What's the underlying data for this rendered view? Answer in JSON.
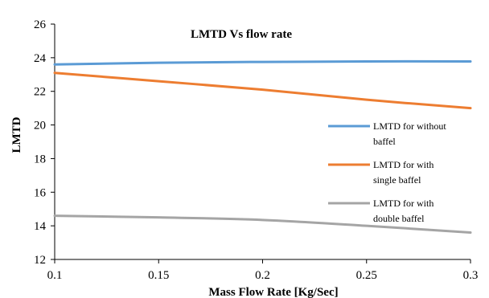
{
  "chart_data": {
    "type": "line",
    "title": "LMTD Vs flow rate",
    "xlabel": "Mass Flow Rate [Kg/Sec]",
    "ylabel": "LMTD",
    "xlim": [
      0.1,
      0.3
    ],
    "ylim": [
      12,
      26
    ],
    "x_ticks": [
      "0.1",
      "0.15",
      "0.2",
      "0.25",
      "0.3"
    ],
    "y_ticks": [
      "12",
      "14",
      "16",
      "18",
      "20",
      "22",
      "24",
      "26"
    ],
    "grid": false,
    "legend_position": "right",
    "x": [
      0.1,
      0.15,
      0.2,
      0.25,
      0.3
    ],
    "series": [
      {
        "name_lines": [
          "LMTD for without",
          "baffel"
        ],
        "color": "#5b9bd5",
        "values": [
          23.6,
          23.7,
          23.75,
          23.78,
          23.78
        ]
      },
      {
        "name_lines": [
          "LMTD for with",
          "single baffel"
        ],
        "color": "#ed7d31",
        "values": [
          23.1,
          22.6,
          22.1,
          21.5,
          21.0
        ]
      },
      {
        "name_lines": [
          "LMTD for with",
          "double baffel"
        ],
        "color": "#a5a5a5",
        "values": [
          14.6,
          14.5,
          14.35,
          14.0,
          13.6
        ]
      }
    ]
  }
}
